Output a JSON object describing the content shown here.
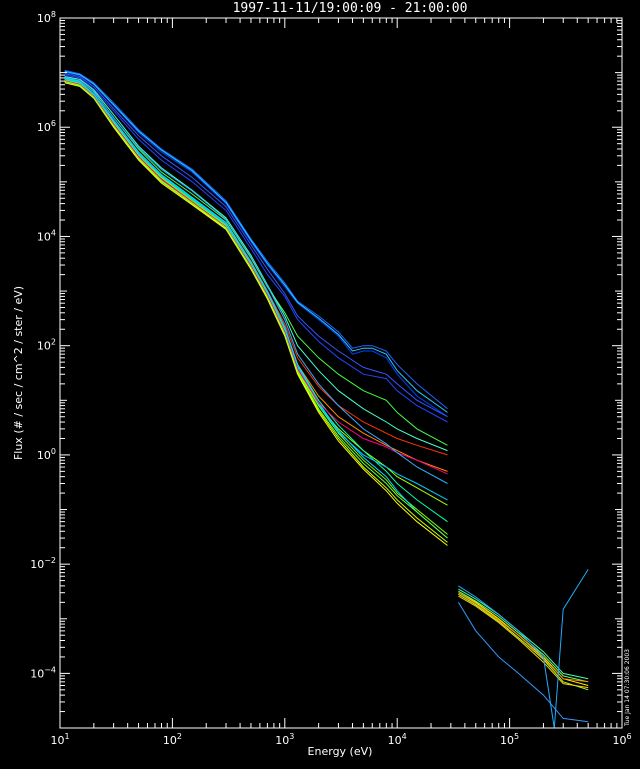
{
  "chart_data": {
    "type": "line",
    "title": "1997-11-11/19:00:09 - 21:00:00",
    "xlabel": "Energy  (eV)",
    "ylabel": "Flux (# / sec / cm^2 / ster / eV)",
    "x_scale": "log",
    "y_scale": "log",
    "xlim": [
      10,
      1000000
    ],
    "ylim": [
      1e-05,
      100000000
    ],
    "x_ticks": [
      {
        "v": 10,
        "b": "10",
        "e": "1"
      },
      {
        "v": 100,
        "b": "10",
        "e": "2"
      },
      {
        "v": 1000,
        "b": "10",
        "e": "3"
      },
      {
        "v": 10000,
        "b": "10",
        "e": "4"
      },
      {
        "v": 100000,
        "b": "10",
        "e": "5"
      },
      {
        "v": 1000000,
        "b": "10",
        "e": "6"
      }
    ],
    "y_ticks": [
      {
        "v": 0.0001,
        "b": "10",
        "e": "−4"
      },
      {
        "v": 0.01,
        "b": "10",
        "e": "−2"
      },
      {
        "v": 1,
        "b": "10",
        "e": "0"
      },
      {
        "v": 100,
        "b": "10",
        "e": "2"
      },
      {
        "v": 10000,
        "b": "10",
        "e": "4"
      },
      {
        "v": 1000000,
        "b": "10",
        "e": "6"
      },
      {
        "v": 100000000,
        "b": "10",
        "e": "8"
      }
    ],
    "background": "#000000",
    "foreground": "#ffffff",
    "grid": false,
    "legend": "none",
    "timestamp": "Tue Jan 14 07:30:06 2003",
    "series": [
      {
        "color": "#0040ff",
        "x": [
          11,
          15,
          20,
          30,
          50,
          80,
          150,
          300,
          500,
          700,
          1000,
          1300,
          2000,
          3000,
          4000,
          5000,
          6000,
          8000,
          10000,
          15000,
          28000
        ],
        "y": [
          10000000,
          9000000,
          6000000,
          2500000,
          800000,
          350000,
          150000,
          40000,
          8000,
          3000,
          1200,
          600,
          300,
          150,
          70,
          80,
          80,
          60,
          30,
          12,
          5
        ]
      },
      {
        "color": "#2266ff",
        "x": [
          11,
          15,
          20,
          30,
          50,
          80,
          150,
          300,
          500,
          700,
          1000,
          1300,
          2000,
          3000,
          4000,
          5000,
          6000,
          8000,
          10000,
          15000,
          28000
        ],
        "y": [
          11000000,
          9500000,
          6500000,
          2800000,
          900000,
          400000,
          170000,
          45000,
          9000,
          3500,
          1400,
          650,
          350,
          180,
          90,
          100,
          100,
          80,
          45,
          20,
          7
        ]
      },
      {
        "color": "#22ccff",
        "x": [
          11,
          15,
          20,
          30,
          50,
          80,
          150,
          300,
          500,
          700,
          1000,
          1300,
          2000,
          3000,
          4000,
          5000,
          6000,
          8000,
          10000,
          15000,
          28000
        ],
        "y": [
          10500000,
          9200000,
          6200000,
          2600000,
          850000,
          380000,
          160000,
          42000,
          8500,
          3200,
          1300,
          620,
          320,
          160,
          80,
          90,
          90,
          70,
          35,
          15,
          6
        ]
      },
      {
        "color": "#2244ff",
        "x": [
          11,
          15,
          20,
          30,
          50,
          80,
          150,
          300,
          500,
          700,
          1000,
          1300,
          2000,
          3000,
          5000,
          8000,
          10000,
          15000,
          28000
        ],
        "y": [
          9000000,
          8000000,
          5000000,
          2000000,
          600000,
          250000,
          100000,
          30000,
          6000,
          2000,
          800,
          300,
          120,
          60,
          30,
          25,
          15,
          8,
          4
        ]
      },
      {
        "color": "#44ff44",
        "x": [
          11,
          15,
          20,
          30,
          50,
          80,
          150,
          300,
          500,
          700,
          1000,
          1300,
          2000,
          3000,
          5000,
          8000,
          10000,
          15000,
          28000
        ],
        "y": [
          8000000,
          7000000,
          4500000,
          1500000,
          400000,
          150000,
          60000,
          20000,
          4000,
          1200,
          400,
          150,
          60,
          30,
          15,
          10,
          6,
          3,
          1.5
        ]
      },
      {
        "color": "#3355ff",
        "x": [
          11,
          15,
          20,
          30,
          50,
          80,
          150,
          300,
          500,
          700,
          1000,
          1300,
          2000,
          3000,
          5000,
          8000,
          10000,
          15000,
          28000
        ],
        "y": [
          9500000,
          8500000,
          5500000,
          2200000,
          700000,
          300000,
          120000,
          35000,
          7000,
          2500,
          900,
          350,
          150,
          80,
          40,
          30,
          20,
          10,
          5
        ]
      },
      {
        "color": "#44ffcc",
        "x": [
          11,
          15,
          20,
          30,
          50,
          80,
          150,
          300,
          500,
          700,
          1000,
          1300,
          2000,
          3000,
          5000,
          8000,
          10000,
          15000,
          28000
        ],
        "y": [
          8500000,
          7500000,
          4800000,
          1700000,
          450000,
          180000,
          70000,
          22000,
          4500,
          1300,
          350,
          100,
          35,
          15,
          7,
          4,
          3,
          2,
          1.2
        ]
      },
      {
        "color": "#ff3300",
        "x": [
          11,
          15,
          20,
          30,
          50,
          80,
          150,
          300,
          500,
          700,
          1000,
          1300,
          2000,
          3000,
          5000,
          8000,
          10000,
          15000,
          28000
        ],
        "y": [
          7500000,
          6500000,
          4000000,
          1300000,
          350000,
          130000,
          50000,
          18000,
          3500,
          1000,
          250,
          60,
          18,
          8,
          4,
          2.5,
          2,
          1.5,
          1
        ]
      },
      {
        "color": "#ff8800",
        "x": [
          11,
          15,
          20,
          30,
          50,
          80,
          150,
          300,
          500,
          700,
          1000,
          1300,
          2000,
          3000,
          5000,
          8000,
          10000,
          15000,
          28000
        ],
        "y": [
          7200000,
          6200000,
          3800000,
          1200000,
          300000,
          120000,
          45000,
          16000,
          3000,
          900,
          200,
          45,
          12,
          5,
          2.5,
          1.5,
          1.2,
          0.8,
          0.5
        ]
      },
      {
        "color": "#aaff00",
        "x": [
          11,
          15,
          20,
          30,
          50,
          80,
          150,
          300,
          500,
          700,
          1000,
          1300,
          2000,
          3000,
          5000,
          8000,
          10000,
          15000,
          28000
        ],
        "y": [
          7000000,
          6000000,
          3600000,
          1100000,
          280000,
          110000,
          42000,
          15000,
          2800,
          800,
          170,
          35,
          8,
          3,
          1.2,
          0.6,
          0.4,
          0.25,
          0.12
        ]
      },
      {
        "color": "#00ffaa",
        "x": [
          11,
          15,
          20,
          30,
          50,
          80,
          150,
          300,
          500,
          700,
          1000,
          1300,
          2000,
          3000,
          5000,
          8000,
          10000,
          15000,
          28000
        ],
        "y": [
          7500000,
          6400000,
          3900000,
          1250000,
          320000,
          125000,
          48000,
          16500,
          3200,
          950,
          210,
          45,
          10,
          3.5,
          1.2,
          0.5,
          0.3,
          0.15,
          0.06
        ]
      },
      {
        "color": "#88ff00",
        "x": [
          11,
          15,
          20,
          30,
          50,
          80,
          150,
          300,
          500,
          700,
          1000,
          1300,
          2000,
          3000,
          5000,
          8000,
          10000,
          15000,
          28000
        ],
        "y": [
          7300000,
          6300000,
          3800000,
          1200000,
          300000,
          118000,
          45000,
          15500,
          3000,
          880,
          190,
          40,
          8,
          2.5,
          0.8,
          0.35,
          0.2,
          0.1,
          0.035
        ]
      },
      {
        "color": "#00ddff",
        "x": [
          11,
          15,
          20,
          30,
          50,
          80,
          150,
          300,
          500,
          700,
          1000,
          1300,
          2000,
          3000,
          5000,
          8000,
          10000,
          15000,
          28000
        ],
        "y": [
          7800000,
          6700000,
          4100000,
          1350000,
          350000,
          135000,
          52000,
          18000,
          3400,
          1000,
          220,
          45,
          9,
          2.8,
          0.9,
          0.4,
          0.22,
          0.09,
          0.03
        ]
      },
      {
        "color": "#ccff00",
        "x": [
          11,
          15,
          20,
          30,
          50,
          80,
          150,
          300,
          500,
          700,
          1000,
          1300,
          2000,
          3000,
          5000,
          8000,
          10000,
          15000,
          28000
        ],
        "y": [
          6800000,
          5800000,
          3500000,
          1050000,
          260000,
          100000,
          40000,
          14000,
          2600,
          760,
          160,
          32,
          6.5,
          2,
          0.6,
          0.25,
          0.15,
          0.07,
          0.025
        ]
      },
      {
        "color": "#ffff00",
        "x": [
          11,
          15,
          20,
          30,
          50,
          80,
          150,
          300,
          500,
          700,
          1000,
          1300,
          2000,
          3000,
          5000,
          8000,
          10000,
          15000,
          28000
        ],
        "y": [
          6500000,
          5600000,
          3400000,
          1000000,
          250000,
          95000,
          38000,
          13500,
          2500,
          720,
          150,
          30,
          6,
          1.8,
          0.55,
          0.22,
          0.13,
          0.06,
          0.022
        ]
      },
      {
        "color": "#00ccff",
        "x": [
          11,
          15,
          20,
          30,
          50,
          80,
          150,
          300,
          500,
          700,
          1000,
          1300,
          2000,
          3000,
          5000,
          8000,
          10000,
          15000,
          28000
        ],
        "y": [
          7600000,
          6600000,
          4000000,
          1300000,
          330000,
          128000,
          50000,
          17000,
          3300,
          970,
          205,
          42,
          8.5,
          2.6,
          1,
          0.6,
          0.45,
          0.3,
          0.15
        ]
      },
      {
        "color": "#ff0088",
        "x": [
          11,
          15,
          20,
          30,
          50,
          80,
          150,
          300,
          500,
          700,
          1000,
          1300,
          2000,
          3000,
          5000,
          8000,
          10000,
          15000,
          28000
        ],
        "y": [
          7100000,
          6100000,
          3700000,
          1150000,
          290000,
          112000,
          43000,
          15000,
          2900,
          850,
          180,
          38,
          9,
          4,
          2,
          1.4,
          1.1,
          0.8,
          0.45
        ]
      },
      {
        "color": "#66ff33",
        "x": [
          11,
          15,
          20,
          30,
          50,
          80,
          150,
          300,
          500,
          700,
          1000,
          1300,
          2000,
          3000,
          5000,
          8000,
          10000,
          15000,
          28000
        ],
        "y": [
          6900000,
          5900000,
          3550000,
          1080000,
          270000,
          104000,
          41000,
          14500,
          2700,
          790,
          165,
          34,
          7,
          2.2,
          0.7,
          0.3,
          0.18,
          0.09,
          0.03
        ]
      },
      {
        "color": "#33aaff",
        "x": [
          11,
          15,
          20,
          30,
          50,
          80,
          150,
          300,
          500,
          700,
          1000,
          1300,
          2000,
          3000,
          5000,
          8000,
          10000,
          15000,
          28000
        ],
        "y": [
          8200000,
          7100000,
          4400000,
          1500000,
          420000,
          170000,
          68000,
          21000,
          4200,
          1250,
          300,
          70,
          20,
          8,
          3,
          1.6,
          1.1,
          0.6,
          0.3
        ]
      },
      {
        "color": "#ffee00",
        "x": [
          35000,
          50000,
          80000,
          120000,
          200000,
          300000,
          500000
        ],
        "y": [
          0.003,
          0.002,
          0.001,
          0.0005,
          0.0002,
          8e-05,
          6e-05
        ]
      },
      {
        "color": "#aaff33",
        "x": [
          35000,
          50000,
          80000,
          120000,
          200000,
          300000,
          500000
        ],
        "y": [
          0.0028,
          0.0018,
          0.0009,
          0.00045,
          0.00018,
          7e-05,
          5e-05
        ]
      },
      {
        "color": "#66ff66",
        "x": [
          35000,
          50000,
          80000,
          120000,
          200000,
          300000,
          500000
        ],
        "y": [
          0.0032,
          0.0021,
          0.0011,
          0.00055,
          0.00022,
          9e-05,
          7e-05
        ]
      },
      {
        "color": "#ffcc00",
        "x": [
          35000,
          50000,
          80000,
          120000,
          200000,
          300000,
          500000
        ],
        "y": [
          0.0026,
          0.0017,
          0.00085,
          0.00042,
          0.00016,
          6.5e-05,
          5.5e-05
        ]
      },
      {
        "color": "#ff8800",
        "x": [
          35000,
          50000,
          80000,
          120000,
          200000,
          300000,
          500000
        ],
        "y": [
          0.003,
          0.0019,
          0.00095,
          0.0005,
          0.00019,
          8e-05,
          7e-05
        ]
      },
      {
        "color": "#44ffaa",
        "x": [
          35000,
          50000,
          80000,
          120000,
          200000,
          300000,
          500000
        ],
        "y": [
          0.0035,
          0.0023,
          0.0012,
          0.0006,
          0.00025,
          0.0001,
          8e-05
        ]
      },
      {
        "color": "#3399ff",
        "x": [
          35000,
          50000,
          80000,
          120000,
          200000,
          300000,
          500000
        ],
        "y": [
          0.002,
          0.0006,
          0.0002,
          0.0001,
          4e-05,
          1.5e-05,
          1.3e-05
        ]
      },
      {
        "color": "#22aaff",
        "x": [
          35000,
          50000,
          80000,
          120000,
          200000,
          250000,
          300000,
          500000
        ],
        "y": [
          0.004,
          0.0025,
          0.0012,
          0.0006,
          0.0002,
          1e-05,
          0.0015,
          0.008
        ]
      }
    ]
  }
}
